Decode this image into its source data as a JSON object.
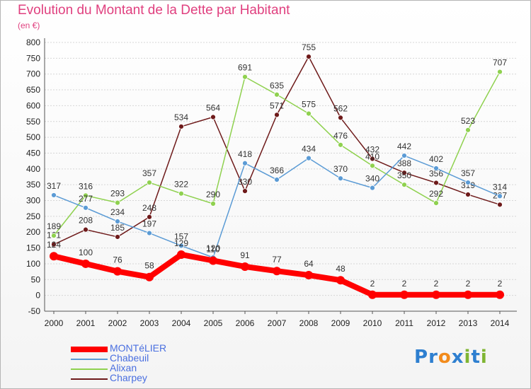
{
  "title": "Evolution du Montant de la Dette par Habitant",
  "unit": "(en €)",
  "logo": {
    "text": "Proxiti",
    "letters": [
      {
        "ch": "P",
        "color": "#2e7fd0"
      },
      {
        "ch": "r",
        "color": "#2e7fd0"
      },
      {
        "ch": "o",
        "color": "#f28b1c"
      },
      {
        "ch": "x",
        "color": "#2e7fd0"
      },
      {
        "ch": "i",
        "color": "#7fb532"
      },
      {
        "ch": "t",
        "color": "#2e7fd0"
      },
      {
        "ch": "i",
        "color": "#7fb532"
      }
    ]
  },
  "chart_data": {
    "type": "line",
    "title": "Evolution du Montant de la Dette par Habitant",
    "xlabel": "",
    "ylabel": "(en €)",
    "x": [
      "2000",
      "2001",
      "2002",
      "2003",
      "2004",
      "2005",
      "2006",
      "2007",
      "2008",
      "2009",
      "2010",
      "2011",
      "2012",
      "2013",
      "2014"
    ],
    "ylim": [
      -50,
      800
    ],
    "yticks": [
      -50,
      0,
      50,
      100,
      150,
      200,
      250,
      300,
      350,
      400,
      450,
      500,
      550,
      600,
      650,
      700,
      750,
      800
    ],
    "grid": "horizontal",
    "legend": "bottom-left",
    "series": [
      {
        "name": "MONTéLIER",
        "color": "#ff0000",
        "values": [
          124,
          100,
          76,
          58,
          129,
          110,
          91,
          77,
          64,
          48,
          2,
          2,
          2,
          2,
          2
        ]
      },
      {
        "name": "Chabeuil",
        "color": "#5b9bd5",
        "values": [
          317,
          277,
          234,
          197,
          157,
          120,
          418,
          366,
          434,
          370,
          340,
          442,
          402,
          357,
          314
        ]
      },
      {
        "name": "Alixan",
        "color": "#8fd14f",
        "values": [
          189,
          316,
          293,
          357,
          322,
          290,
          691,
          635,
          575,
          476,
          410,
          350,
          292,
          523,
          707
        ]
      },
      {
        "name": "Charpey",
        "color": "#6e1a1a",
        "values": [
          161,
          208,
          185,
          248,
          534,
          564,
          330,
          571,
          755,
          562,
          432,
          388,
          356,
          319,
          287
        ]
      }
    ]
  }
}
